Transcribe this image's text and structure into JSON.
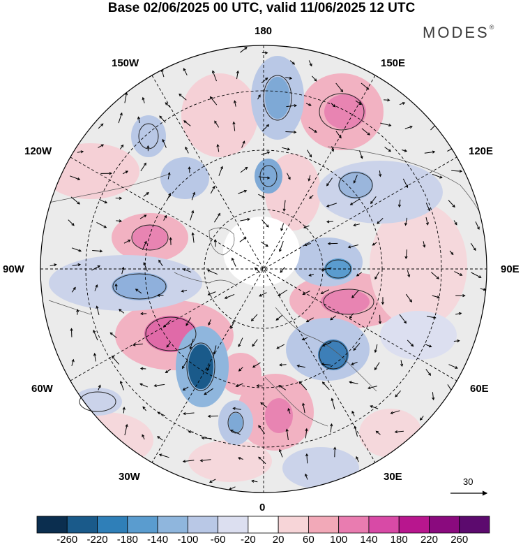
{
  "title": "Base 02/06/2025 00 UTC, valid 11/06/2025 12 UTC",
  "brand": {
    "name": "MODES",
    "mark": "®"
  },
  "longitude_labels": {
    "lon_180": "180",
    "lon_150w": "150W",
    "lon_150e": "150E",
    "lon_120w": "120W",
    "lon_120e": "120E",
    "lon_90w": "90W",
    "lon_90e": "90E",
    "lon_60w": "60W",
    "lon_60e": "60E",
    "lon_30w": "30W",
    "lon_30e": "30E",
    "lon_0": "0"
  },
  "wind_scale": {
    "value": "30"
  },
  "colorbar": {
    "ticks": [
      "-260",
      "-220",
      "-180",
      "-140",
      "-100",
      "-60",
      "-20",
      "20",
      "60",
      "100",
      "140",
      "180",
      "220",
      "260"
    ],
    "colors": [
      "#0b2e4f",
      "#1a5a8a",
      "#2f7fb8",
      "#5a9ccf",
      "#8fb6dd",
      "#b9c8e6",
      "#dcdff0",
      "#ffffff",
      "#f7d5d8",
      "#f2a9b8",
      "#e97cb0",
      "#d84aa6",
      "#b8168e",
      "#8a0a7e",
      "#5c0a6e"
    ]
  }
}
